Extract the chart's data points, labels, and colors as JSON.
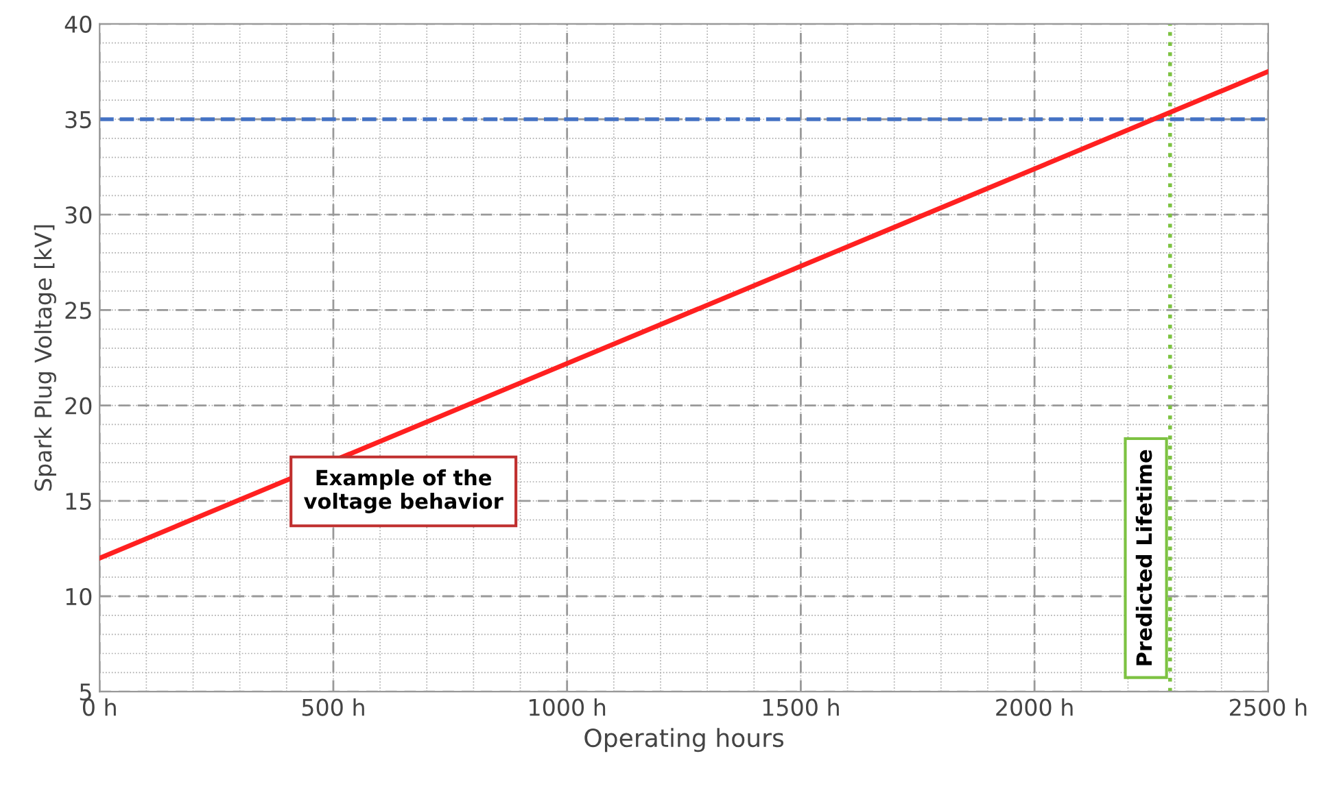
{
  "chart_data": {
    "type": "line",
    "xlabel": "Operating hours",
    "ylabel": "Spark Plug Voltage [kV]",
    "x": [
      0,
      2500
    ],
    "series": [
      {
        "color": "#ff2020",
        "values": [
          12,
          37.5
        ]
      }
    ],
    "xlim": [
      0,
      2500
    ],
    "ylim": [
      5,
      40
    ],
    "xticks": [
      {
        "value": 0,
        "label": "0 h"
      },
      {
        "value": 500,
        "label": "500 h"
      },
      {
        "value": 1000,
        "label": "1000 h"
      },
      {
        "value": 1500,
        "label": "1500 h"
      },
      {
        "value": 2000,
        "label": "2000 h"
      },
      {
        "value": 2500,
        "label": "2500 h"
      }
    ],
    "yticks": [
      5,
      10,
      15,
      20,
      25,
      30,
      35,
      40
    ],
    "ref_lines": [
      {
        "axis": "y",
        "value": 35,
        "color": "#4472c4",
        "line_style": "dashed"
      },
      {
        "axis": "x",
        "value": 2290,
        "label": "Predicted Lifetime",
        "color": "#7dc242",
        "line_style": "dotted"
      }
    ],
    "annotations": [
      "Example of the\nvoltage behavior"
    ],
    "grid": true,
    "legend": false
  }
}
